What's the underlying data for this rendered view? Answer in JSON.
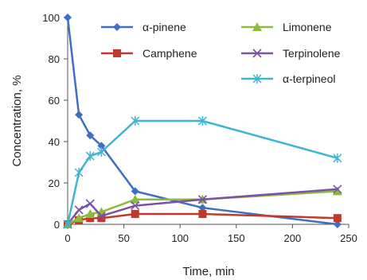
{
  "chart_data": {
    "type": "line",
    "title": "",
    "xlabel": "Time, min",
    "ylabel": "Concentration, %",
    "xlim": [
      0,
      250
    ],
    "ylim": [
      0,
      100
    ],
    "x_ticks": [
      0,
      50,
      100,
      150,
      200,
      250
    ],
    "y_ticks": [
      0,
      20,
      40,
      60,
      80,
      100
    ],
    "x_tick_labels": [
      "0",
      "50",
      "100",
      "150",
      "200",
      "250"
    ],
    "y_tick_labels": [
      "0",
      "20",
      "40",
      "60",
      "80",
      "100"
    ],
    "grid": false,
    "legend_position": "top-right",
    "series": [
      {
        "name": "α-pinene",
        "color": "#3d6fc4",
        "marker": "diamond",
        "x": [
          0,
          10,
          20,
          30,
          60,
          120,
          240
        ],
        "y": [
          100,
          53,
          43,
          38,
          16,
          8,
          0
        ]
      },
      {
        "name": "Camphene",
        "color": "#c0392b",
        "marker": "square",
        "x": [
          0,
          10,
          20,
          30,
          60,
          120,
          240
        ],
        "y": [
          0,
          2,
          3,
          3,
          5,
          5,
          3
        ]
      },
      {
        "name": "Limonene",
        "color": "#8dbb3b",
        "marker": "triangle",
        "x": [
          0,
          10,
          20,
          30,
          60,
          120,
          240
        ],
        "y": [
          0,
          3,
          5,
          6,
          12,
          12,
          16
        ]
      },
      {
        "name": "Terpinolene",
        "color": "#7b52a6",
        "marker": "x",
        "x": [
          0,
          10,
          20,
          30,
          60,
          120,
          240
        ],
        "y": [
          0,
          7,
          10,
          4,
          9,
          12,
          17
        ]
      },
      {
        "name": "α-terpineol",
        "color": "#3fb5d3",
        "marker": "star",
        "x": [
          0,
          10,
          20,
          30,
          60,
          120,
          240
        ],
        "y": [
          0,
          25,
          33,
          35,
          50,
          50,
          32
        ]
      }
    ]
  }
}
